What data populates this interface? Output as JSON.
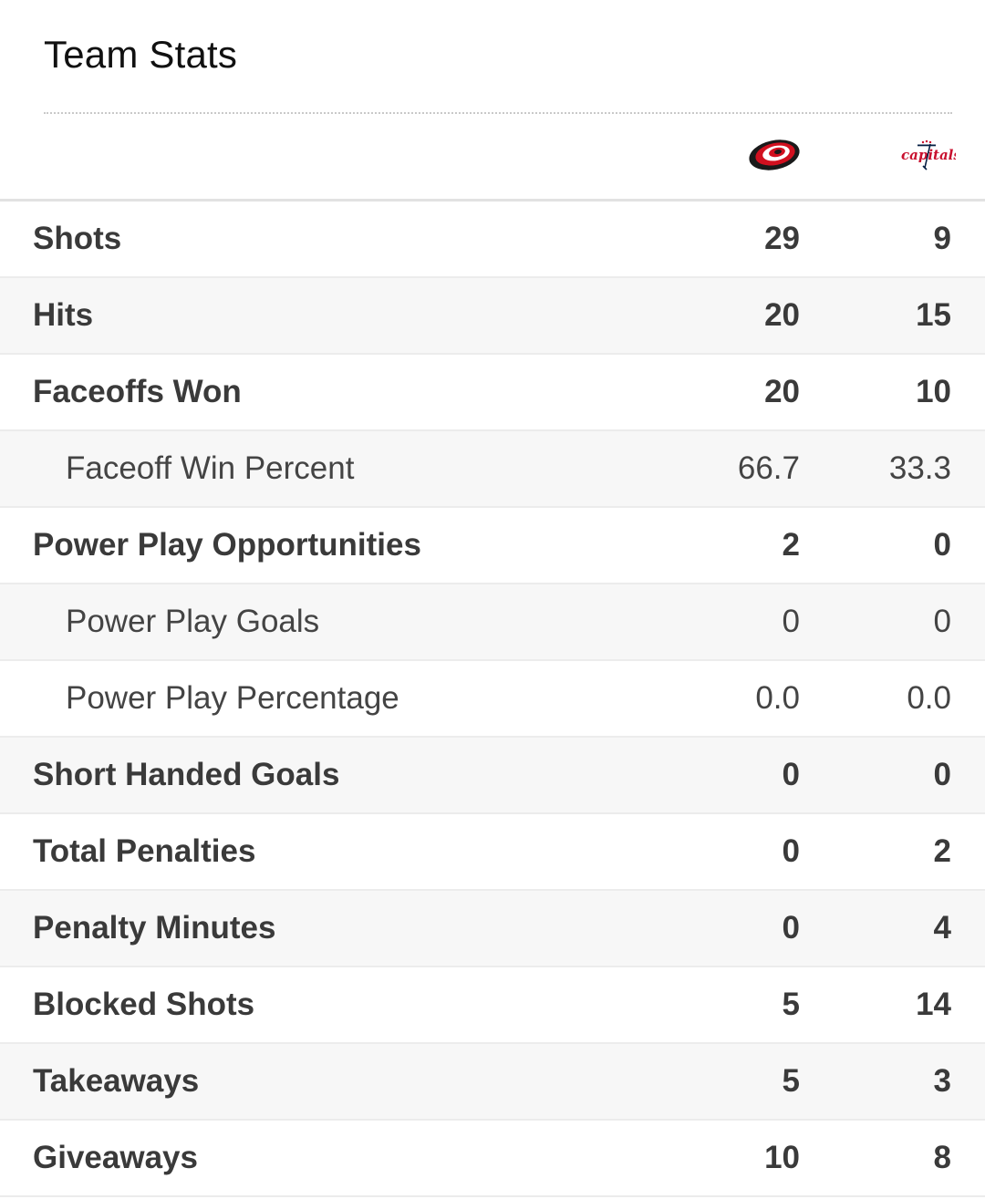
{
  "header": {
    "title": "Team Stats",
    "home_logo_icon": "carolina-hurricanes-logo-icon",
    "away_logo_icon": "washington-capitals-logo-icon"
  },
  "colors": {
    "hurricanes_red": "#d1101f",
    "capitals_red": "#c8102e",
    "capitals_navy": "#041e42"
  },
  "stats": [
    {
      "label": "Shots",
      "home": "29",
      "away": "9",
      "sub": false
    },
    {
      "label": "Hits",
      "home": "20",
      "away": "15",
      "sub": false
    },
    {
      "label": "Faceoffs Won",
      "home": "20",
      "away": "10",
      "sub": false
    },
    {
      "label": "Faceoff Win Percent",
      "home": "66.7",
      "away": "33.3",
      "sub": true
    },
    {
      "label": "Power Play Opportunities",
      "home": "2",
      "away": "0",
      "sub": false
    },
    {
      "label": "Power Play Goals",
      "home": "0",
      "away": "0",
      "sub": true
    },
    {
      "label": "Power Play Percentage",
      "home": "0.0",
      "away": "0.0",
      "sub": true
    },
    {
      "label": "Short Handed Goals",
      "home": "0",
      "away": "0",
      "sub": false
    },
    {
      "label": "Total Penalties",
      "home": "0",
      "away": "2",
      "sub": false
    },
    {
      "label": "Penalty Minutes",
      "home": "0",
      "away": "4",
      "sub": false
    },
    {
      "label": "Blocked Shots",
      "home": "5",
      "away": "14",
      "sub": false
    },
    {
      "label": "Takeaways",
      "home": "5",
      "away": "3",
      "sub": false
    },
    {
      "label": "Giveaways",
      "home": "10",
      "away": "8",
      "sub": false
    }
  ]
}
